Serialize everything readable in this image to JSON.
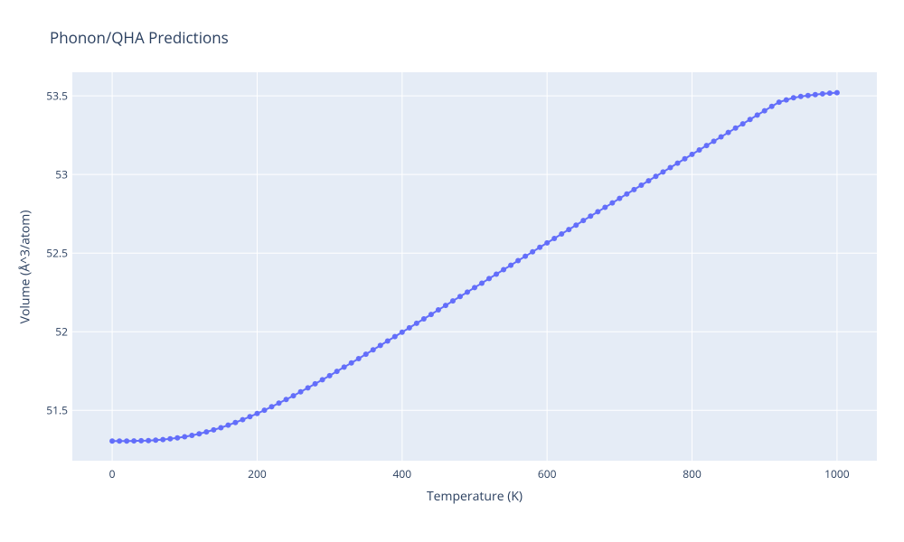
{
  "chart": {
    "type": "scatter-line",
    "title": "Phonon/QHA Predictions",
    "title_fontsize": 17,
    "title_color": "#2a3f5f",
    "xlabel": "Temperature (K)",
    "ylabel": "Volume (Å^3/atom)",
    "label_fontsize": 14,
    "label_color": "#2a3f5f",
    "tick_fontsize": 12,
    "tick_color": "#2a3f5f",
    "background_color": "#ffffff",
    "plot_bg_color": "#e5ecf6",
    "grid_color": "#ffffff",
    "xlim": [
      -55,
      1055
    ],
    "ylim": [
      51.18,
      53.65
    ],
    "xticks": [
      0,
      200,
      400,
      600,
      800,
      1000
    ],
    "yticks": [
      51.5,
      52,
      52.5,
      53,
      53.5
    ],
    "series": {
      "line_color": "#636efa",
      "marker_color": "#636efa",
      "line_width": 2,
      "marker_size": 6,
      "marker_style": "circle",
      "x": [
        0,
        10,
        20,
        30,
        40,
        50,
        60,
        70,
        80,
        90,
        100,
        110,
        120,
        130,
        140,
        150,
        160,
        170,
        180,
        190,
        200,
        210,
        220,
        230,
        240,
        250,
        260,
        270,
        280,
        290,
        300,
        310,
        320,
        330,
        340,
        350,
        360,
        370,
        380,
        390,
        400,
        410,
        420,
        430,
        440,
        450,
        460,
        470,
        480,
        490,
        500,
        510,
        520,
        530,
        540,
        550,
        560,
        570,
        580,
        590,
        600,
        610,
        620,
        630,
        640,
        650,
        660,
        670,
        680,
        690,
        700,
        710,
        720,
        730,
        740,
        750,
        760,
        770,
        780,
        790,
        800,
        810,
        820,
        830,
        840,
        850,
        860,
        870,
        880,
        890,
        900,
        910,
        920,
        930,
        940,
        950,
        960,
        970,
        980,
        990,
        1000
      ],
      "y": [
        51.305,
        51.305,
        51.305,
        51.306,
        51.307,
        51.308,
        51.311,
        51.314,
        51.319,
        51.325,
        51.332,
        51.341,
        51.351,
        51.363,
        51.376,
        51.39,
        51.406,
        51.423,
        51.441,
        51.46,
        51.48,
        51.501,
        51.523,
        51.546,
        51.569,
        51.593,
        51.618,
        51.643,
        51.669,
        51.695,
        51.721,
        51.748,
        51.775,
        51.802,
        51.829,
        51.857,
        51.885,
        51.913,
        51.941,
        51.969,
        51.997,
        52.025,
        52.054,
        52.082,
        52.11,
        52.139,
        52.167,
        52.196,
        52.224,
        52.252,
        52.281,
        52.309,
        52.338,
        52.366,
        52.395,
        52.423,
        52.452,
        52.48,
        52.508,
        52.537,
        52.565,
        52.593,
        52.622,
        52.65,
        52.678,
        52.707,
        52.735,
        52.763,
        52.791,
        52.819,
        52.848,
        52.876,
        52.904,
        52.932,
        52.96,
        52.988,
        53.016,
        53.044,
        53.072,
        53.1,
        53.128,
        53.156,
        53.184,
        53.211,
        53.239,
        53.267,
        53.295,
        53.322,
        53.35,
        53.378,
        53.405,
        53.433,
        53.46,
        53.474,
        53.488,
        53.496,
        53.502,
        53.508,
        53.513,
        53.517,
        53.52
      ]
    }
  }
}
